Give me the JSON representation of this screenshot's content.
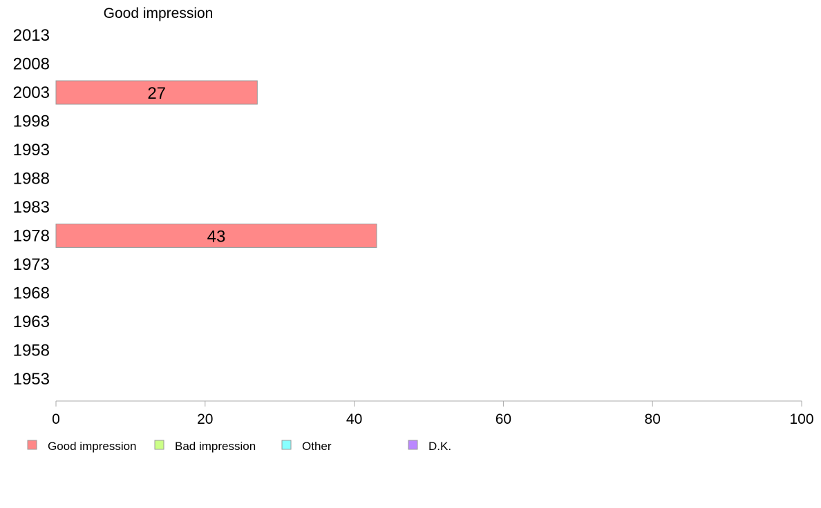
{
  "chart_data": {
    "type": "bar",
    "orientation": "horizontal",
    "title": "Good impression",
    "categories": [
      "2013",
      "2008",
      "2003",
      "1998",
      "1993",
      "1988",
      "1983",
      "1978",
      "1973",
      "1968",
      "1963",
      "1958",
      "1953"
    ],
    "series": [
      {
        "name": "Good impression",
        "color": "#ff8888",
        "values": [
          null,
          null,
          27,
          null,
          null,
          null,
          null,
          43,
          null,
          null,
          null,
          null,
          null
        ],
        "labels": [
          "",
          "",
          "27",
          "",
          "",
          "",
          "",
          "43",
          "",
          "",
          "",
          "",
          ""
        ]
      }
    ],
    "xlim": [
      0,
      100
    ],
    "xticks": [
      "0",
      "20",
      "40",
      "60",
      "80",
      "100"
    ],
    "grid": false,
    "legend_position": "bottom",
    "legend": [
      {
        "label": "Good impression",
        "color": "#ff8888"
      },
      {
        "label": "Bad impression",
        "color": "#ccff88"
      },
      {
        "label": "Other",
        "color": "#88ffff"
      },
      {
        "label": "D.K.",
        "color": "#bb88ff"
      }
    ]
  }
}
